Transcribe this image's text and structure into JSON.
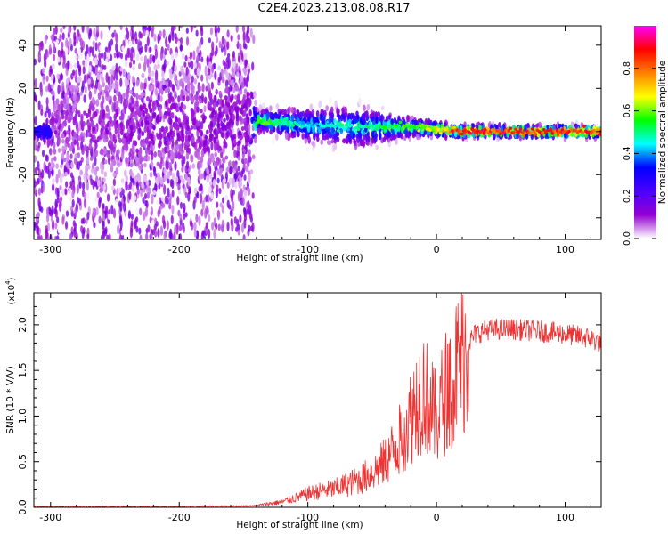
{
  "title": "C2E4.2023.213.08.08.R17",
  "chart_data": [
    {
      "type": "heatmap",
      "xlabel": "Height of straight line (km)",
      "ylabel": "Frequency (Hz)",
      "xlim": [
        -313,
        128
      ],
      "ylim": [
        -50,
        49
      ],
      "xticks": [
        -300,
        -200,
        -100,
        0,
        100
      ],
      "yticks": [
        -40,
        -20,
        0,
        20,
        40
      ],
      "colorbar": {
        "label": "Normalized spectral amplitude",
        "range": [
          0.0,
          1.0
        ],
        "ticks": [
          0.0,
          0.2,
          0.4,
          0.6,
          0.8
        ],
        "colormap": [
          "#ffffff",
          "#9400d3",
          "#4b00ff",
          "#0000ff",
          "#00ffff",
          "#00ff00",
          "#ffff00",
          "#ff8000",
          "#ff0000",
          "#ff00ff"
        ]
      },
      "description_points": [
        {
          "x": -300,
          "center_freq": 2,
          "spread": 45,
          "amplitude": 0.1
        },
        {
          "x": -145,
          "center_freq": 3,
          "spread": 45,
          "amplitude": 0.15
        },
        {
          "x": -140,
          "center_freq": 5,
          "spread": 6,
          "amplitude": 0.6
        },
        {
          "x": -100,
          "center_freq": 3,
          "spread": 10,
          "amplitude": 0.45
        },
        {
          "x": -60,
          "center_freq": 2,
          "spread": 12,
          "amplitude": 0.5
        },
        {
          "x": -20,
          "center_freq": 2,
          "spread": 5,
          "amplitude": 0.6
        },
        {
          "x": 0,
          "center_freq": 1,
          "spread": 4,
          "amplitude": 0.7
        },
        {
          "x": 20,
          "center_freq": 0,
          "spread": 3,
          "amplitude": 0.9
        },
        {
          "x": 128,
          "center_freq": 0,
          "spread": 3,
          "amplitude": 0.9
        }
      ]
    },
    {
      "type": "line",
      "xlabel": "Height of straight line (km)",
      "ylabel": "SNR (10 * V/V)",
      "yscale_label": "(x10",
      "yscale_exp": "4",
      "xlim": [
        -313,
        128
      ],
      "ylim": [
        0.0,
        2.35
      ],
      "xticks": [
        -300,
        -200,
        -100,
        0,
        100
      ],
      "yticks": [
        0.0,
        0.5,
        1.0,
        1.5,
        2.0
      ],
      "ytick_labels": [
        "0.0",
        "0.5",
        "1.0",
        "1.5",
        "2.0"
      ],
      "color": "#ee3333",
      "series": [
        {
          "x": [
            -313,
            -250,
            -200,
            -150,
            -140,
            -130,
            -120,
            -110,
            -100,
            -90,
            -80,
            -70,
            -60,
            -50,
            -40,
            -30,
            -25,
            -20,
            -15,
            -10,
            -5,
            0,
            5,
            10,
            15,
            20,
            25,
            30,
            40,
            50,
            60,
            80,
            100,
            120,
            128
          ],
          "y": [
            0.01,
            0.01,
            0.01,
            0.015,
            0.02,
            0.04,
            0.06,
            0.1,
            0.15,
            0.18,
            0.2,
            0.25,
            0.3,
            0.38,
            0.5,
            0.7,
            0.85,
            1.0,
            1.2,
            1.3,
            1.1,
            0.95,
            1.2,
            1.35,
            1.5,
            1.65,
            1.8,
            1.9,
            1.95,
            1.95,
            1.95,
            1.93,
            1.9,
            1.85,
            1.8
          ]
        }
      ]
    }
  ]
}
